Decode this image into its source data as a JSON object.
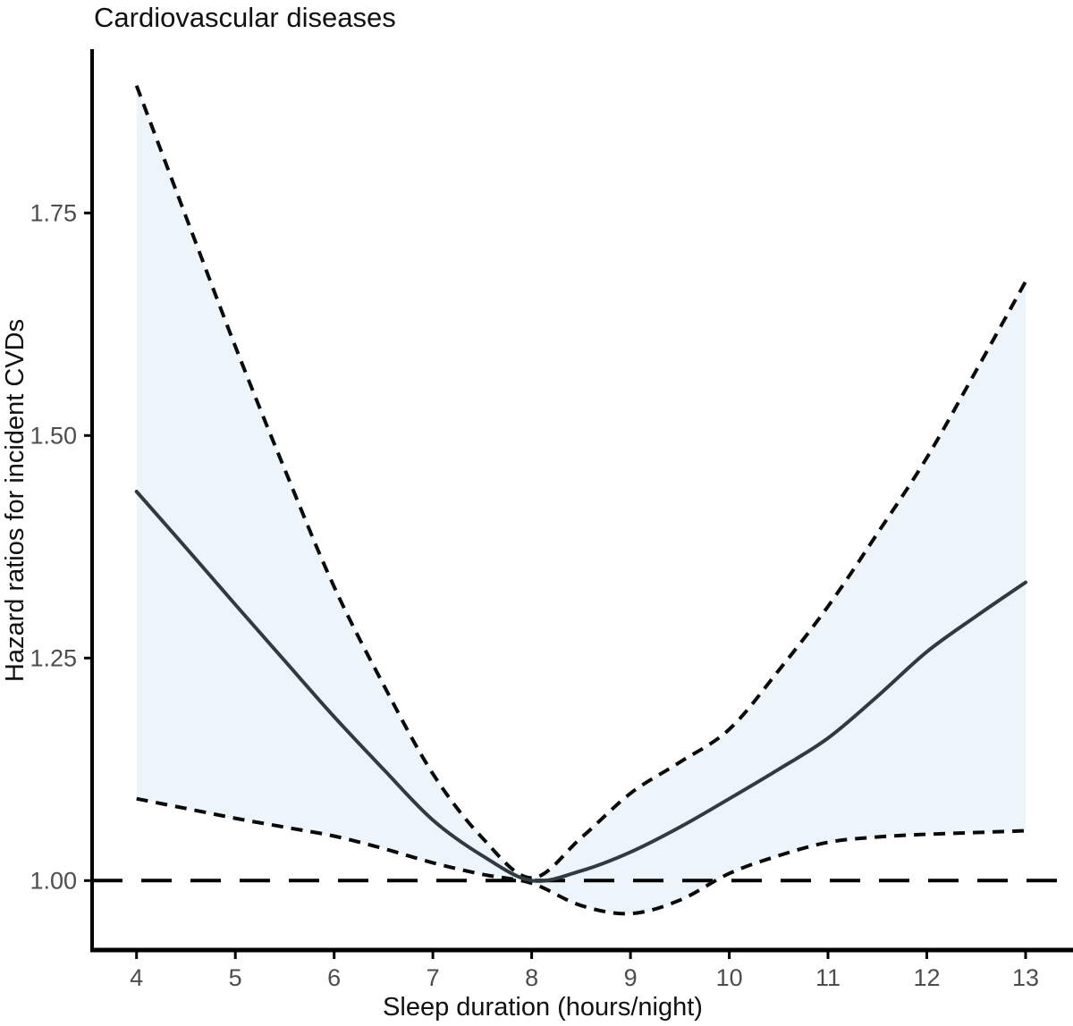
{
  "chart_data": {
    "type": "line",
    "title": "Cardiovascular diseases",
    "xlabel": "Sleep duration (hours/night)",
    "ylabel": "Hazard ratios for incident CVDs",
    "x_ticks": [
      "4",
      "5",
      "6",
      "7",
      "8",
      "9",
      "10",
      "11",
      "12",
      "13"
    ],
    "x_tick_values": [
      4,
      5,
      6,
      7,
      8,
      9,
      10,
      11,
      12,
      13
    ],
    "y_ticks": [
      "1.00",
      "1.25",
      "1.50",
      "1.75"
    ],
    "y_tick_values": [
      1.0,
      1.25,
      1.5,
      1.75
    ],
    "xlim": [
      3.55,
      13.48
    ],
    "ylim": [
      0.922,
      1.934
    ],
    "reference_line_y": 1.0,
    "x": [
      4,
      4.5,
      5,
      5.5,
      6,
      6.5,
      7,
      7.5,
      8,
      8.5,
      9,
      9.5,
      10,
      10.5,
      11,
      11.5,
      12,
      12.5,
      13
    ],
    "series": [
      {
        "name": "hazard-ratio",
        "values": [
          1.437,
          1.374,
          1.31,
          1.247,
          1.184,
          1.125,
          1.068,
          1.028,
          1.0,
          1.011,
          1.032,
          1.06,
          1.092,
          1.125,
          1.16,
          1.207,
          1.257,
          1.297,
          1.335
        ]
      },
      {
        "name": "upper-95ci",
        "values": [
          1.893,
          1.746,
          1.6,
          1.462,
          1.33,
          1.22,
          1.12,
          1.048,
          1.003,
          1.048,
          1.098,
          1.133,
          1.17,
          1.236,
          1.308,
          1.39,
          1.475,
          1.573,
          1.673
        ]
      },
      {
        "name": "lower-95ci",
        "values": [
          1.092,
          1.081,
          1.07,
          1.06,
          1.05,
          1.036,
          1.02,
          1.007,
          0.997,
          0.972,
          0.963,
          0.978,
          1.008,
          1.028,
          1.043,
          1.049,
          1.052,
          1.054,
          1.056
        ]
      }
    ],
    "colors": {
      "band_fill": "#edf5fa",
      "solid_line": "#323a40",
      "ci_line": "#0a0a0a",
      "reference_line": "#000000",
      "axis_line": "#000000",
      "tick_label": "#4d4d4d"
    },
    "legend": "none",
    "grid": "off"
  }
}
